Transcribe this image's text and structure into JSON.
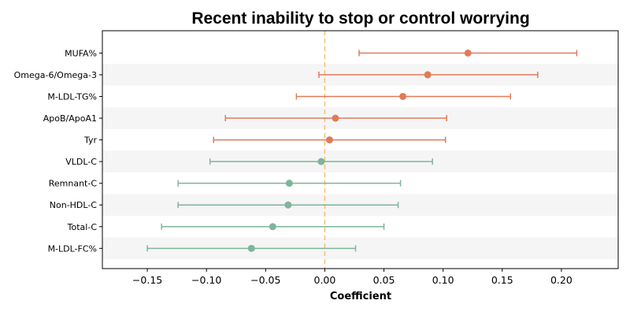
{
  "chart_data": {
    "type": "forest",
    "title": "Recent inability to stop or control worrying",
    "xlabel": "Coefficient",
    "ylabel": "",
    "xlim": [
      -0.188,
      0.248
    ],
    "xticks": [
      -0.15,
      -0.1,
      -0.05,
      0.0,
      0.05,
      0.1,
      0.15,
      0.2
    ],
    "xtick_labels": [
      "−0.15",
      "−0.10",
      "−0.05",
      "0.00",
      "0.05",
      "0.10",
      "0.15",
      "0.20"
    ],
    "reference_line": 0,
    "grid": false,
    "colors": {
      "positive": "#e07b5a",
      "negative": "#7fb59a",
      "reference": "#f5c06b",
      "band": "#f5f5f5"
    },
    "series": [
      {
        "label": "MUFA%",
        "estimate": 0.121,
        "ci_low": 0.029,
        "ci_high": 0.213
      },
      {
        "label": "Omega-6/Omega-3",
        "estimate": 0.087,
        "ci_low": -0.005,
        "ci_high": 0.18
      },
      {
        "label": "M-LDL-TG%",
        "estimate": 0.066,
        "ci_low": -0.024,
        "ci_high": 0.157
      },
      {
        "label": "ApoB/ApoA1",
        "estimate": 0.009,
        "ci_low": -0.084,
        "ci_high": 0.103
      },
      {
        "label": "Tyr",
        "estimate": 0.004,
        "ci_low": -0.094,
        "ci_high": 0.102
      },
      {
        "label": "VLDL-C",
        "estimate": -0.003,
        "ci_low": -0.097,
        "ci_high": 0.091
      },
      {
        "label": "Remnant-C",
        "estimate": -0.03,
        "ci_low": -0.124,
        "ci_high": 0.064
      },
      {
        "label": "Non-HDL-C",
        "estimate": -0.031,
        "ci_low": -0.124,
        "ci_high": 0.062
      },
      {
        "label": "Total-C",
        "estimate": -0.044,
        "ci_low": -0.138,
        "ci_high": 0.05
      },
      {
        "label": "M-LDL-FC%",
        "estimate": -0.062,
        "ci_low": -0.15,
        "ci_high": 0.026
      }
    ]
  }
}
